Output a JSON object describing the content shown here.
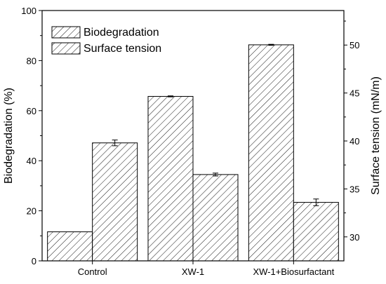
{
  "chart_data": {
    "type": "bar",
    "categories": [
      "Control",
      "XW-1",
      "XW-1+Biosurfactant"
    ],
    "series": [
      {
        "name": "Biodegradation",
        "axis": "left",
        "values": [
          11.6,
          65.7,
          86.3
        ],
        "errors": [
          0,
          0.2,
          0.2
        ]
      },
      {
        "name": "Surface tension",
        "axis": "right",
        "values": [
          39.8,
          36.5,
          33.6
        ],
        "errors": [
          0.3,
          0.15,
          0.35
        ]
      }
    ],
    "ylabel": "Biodegradation (%)",
    "ylim": [
      0,
      100
    ],
    "yticks": [
      0,
      20,
      40,
      60,
      80,
      100
    ],
    "y2label": "Surface tension (mN/m)",
    "y2lim": [
      27.5,
      53.6
    ],
    "y2ticks": [
      30,
      35,
      40,
      45,
      50
    ],
    "legend_position": "top-left",
    "fill_pattern": "diagonal-hatch",
    "grid": false
  }
}
